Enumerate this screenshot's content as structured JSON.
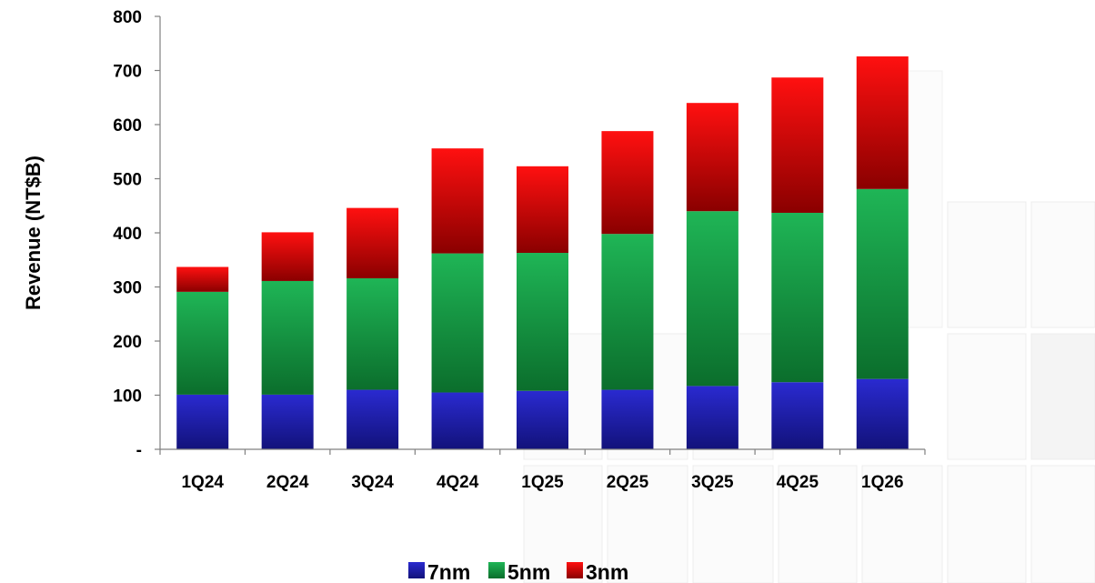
{
  "chart_data": {
    "type": "bar",
    "stacked": true,
    "ylabel": "Revenue (NT$B)",
    "ylim": [
      0,
      800
    ],
    "yticks": [
      0,
      100,
      200,
      300,
      400,
      500,
      600,
      700,
      800
    ],
    "ytick_labels": [
      "-",
      "100",
      "200",
      "300",
      "400",
      "500",
      "600",
      "700",
      "800"
    ],
    "categories": [
      "1Q24",
      "2Q24",
      "3Q24",
      "4Q24",
      "1Q25",
      "2Q25",
      "3Q25",
      "4Q25",
      "1Q26"
    ],
    "series": [
      {
        "name": "7nm",
        "color": "#2a2ad0",
        "dark": "#12127a",
        "values": [
          101,
          101,
          110,
          105,
          108,
          110,
          117,
          124,
          130
        ]
      },
      {
        "name": "5nm",
        "color": "#1fb556",
        "dark": "#0b6e2c",
        "values": [
          190,
          210,
          206,
          257,
          255,
          288,
          323,
          313,
          351
        ]
      },
      {
        "name": "3nm",
        "color": "#ff1010",
        "dark": "#8a0000",
        "values": [
          46,
          90,
          130,
          194,
          160,
          190,
          200,
          250,
          245
        ]
      }
    ],
    "grid": false,
    "legend_position": "bottom"
  }
}
